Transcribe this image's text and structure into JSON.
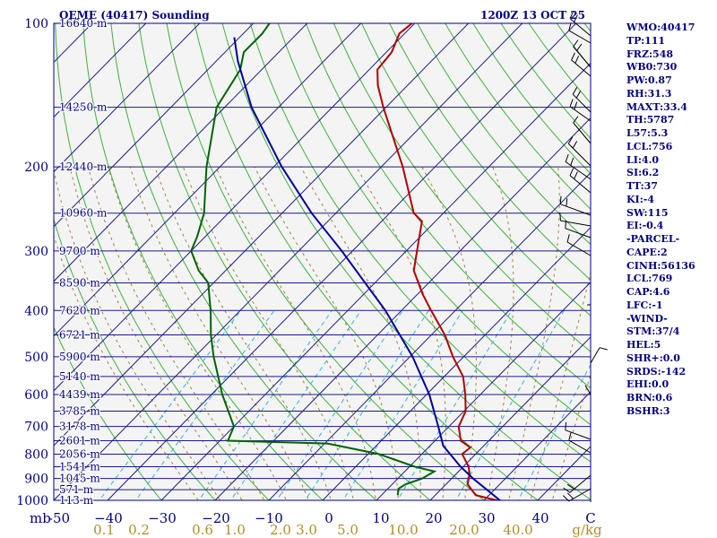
{
  "header": {
    "title": "OEME (40417) Sounding",
    "time": "1200Z 13 OCT 25"
  },
  "units": {
    "pressure": "mb",
    "mixing_ratio": "g/kg"
  },
  "panel": [
    "WMO:40417",
    "TP:111",
    "FRZ:548",
    "WB0:730",
    "PW:0.87",
    "RH:31.3",
    "MAXT:33.4",
    "TH:5787",
    "L57:5.3",
    "LCL:756",
    "LI:4.0",
    "SI:6.2",
    "TT:37",
    "KI:-4",
    "SW:115",
    "EI:-0.4",
    "-PARCEL-",
    "CAPE:2",
    "CINH:56136",
    "LCL:769",
    "CAP:4.6",
    "LFC:-1",
    "-WIND-",
    "STM:37/4",
    "HEL:5",
    "SHR+:0.0",
    "SRDS:-142",
    "EHI:0.0",
    "BRN:0.6",
    "BSHR:3"
  ],
  "chart_data": {
    "type": "line",
    "title": "OEME (40417) Sounding",
    "subtitle": "1200Z 13 OCT 25",
    "xlabel": "",
    "ylabel": "mb",
    "log_y": true,
    "ylim": [
      1000,
      100
    ],
    "xlim": [
      -50,
      50
    ],
    "skew": true,
    "grid": true,
    "pressure_ticks": [
      100,
      200,
      300,
      400,
      500,
      600,
      700,
      800,
      900,
      1000
    ],
    "temperature_ticks": [
      "-50",
      "−40",
      "−30",
      "−20",
      "−10",
      "0",
      "10",
      "20",
      "30",
      "40",
      "C"
    ],
    "mixing_ratio_ticks": [
      "0.1",
      "0.2",
      "0.6",
      "1.0",
      "2.0",
      "3.0",
      "5.0",
      "10.0",
      "20.0",
      "40.0",
      "g/kg"
    ],
    "height_labels": [
      {
        "p": 100,
        "label": "16640 m"
      },
      {
        "p": 150,
        "label": "14250 m"
      },
      {
        "p": 200,
        "label": "12440 m"
      },
      {
        "p": 250,
        "label": "10960 m"
      },
      {
        "p": 300,
        "label": "9700 m"
      },
      {
        "p": 350,
        "label": "8590 m"
      },
      {
        "p": 400,
        "label": "7620 m"
      },
      {
        "p": 450,
        "label": "6721 m"
      },
      {
        "p": 500,
        "label": "5900 m"
      },
      {
        "p": 550,
        "label": "5140 m"
      },
      {
        "p": 600,
        "label": "4439 m"
      },
      {
        "p": 650,
        "label": "3785 m"
      },
      {
        "p": 700,
        "label": "3178 m"
      },
      {
        "p": 750,
        "label": "2601 m"
      },
      {
        "p": 800,
        "label": "2056 m"
      },
      {
        "p": 850,
        "label": "1541 m"
      },
      {
        "p": 900,
        "label": "1045 m"
      },
      {
        "p": 950,
        "label": "571 m"
      },
      {
        "p": 1000,
        "label": "113 m"
      }
    ],
    "series": [
      {
        "color": "#b30000",
        "points": [
          {
            "p": 1005,
            "t": 33.4
          },
          {
            "p": 975,
            "t": 27.5
          },
          {
            "p": 925,
            "t": 24.0
          },
          {
            "p": 880,
            "t": 22.5
          },
          {
            "p": 850,
            "t": 21.0
          },
          {
            "p": 800,
            "t": 17.5
          },
          {
            "p": 775,
            "t": 17.8
          },
          {
            "p": 750,
            "t": 14.8
          },
          {
            "p": 700,
            "t": 11.8
          },
          {
            "p": 650,
            "t": 10.3
          },
          {
            "p": 600,
            "t": 7.2
          },
          {
            "p": 550,
            "t": 3.5
          },
          {
            "p": 500,
            "t": -2.0
          },
          {
            "p": 450,
            "t": -7.5
          },
          {
            "p": 400,
            "t": -14.5
          },
          {
            "p": 370,
            "t": -19.0
          },
          {
            "p": 330,
            "t": -25.0
          },
          {
            "p": 300,
            "t": -28.0
          },
          {
            "p": 260,
            "t": -32.5
          },
          {
            "p": 250,
            "t": -35.5
          },
          {
            "p": 200,
            "t": -46.0
          },
          {
            "p": 150,
            "t": -60.5
          },
          {
            "p": 135,
            "t": -65.5
          },
          {
            "p": 125,
            "t": -68.5
          },
          {
            "p": 115,
            "t": -69.0
          },
          {
            "p": 105,
            "t": -71.0
          },
          {
            "p": 100,
            "t": -70.5
          }
        ]
      },
      {
        "color": "#006400",
        "points": [
          {
            "p": 975,
            "t": 13.0
          },
          {
            "p": 945,
            "t": 12.0
          },
          {
            "p": 925,
            "t": 12.5
          },
          {
            "p": 900,
            "t": 14.5
          },
          {
            "p": 870,
            "t": 15.5
          },
          {
            "p": 850,
            "t": 11.0
          },
          {
            "p": 800,
            "t": 2.0
          },
          {
            "p": 760,
            "t": -9.5
          },
          {
            "p": 750,
            "t": -28.5
          },
          {
            "p": 700,
            "t": -30.0
          },
          {
            "p": 600,
            "t": -38.0
          },
          {
            "p": 500,
            "t": -46.5
          },
          {
            "p": 450,
            "t": -51.0
          },
          {
            "p": 400,
            "t": -55.5
          },
          {
            "p": 350,
            "t": -61.0
          },
          {
            "p": 330,
            "t": -65.0
          },
          {
            "p": 300,
            "t": -70.0
          },
          {
            "p": 280,
            "t": -71.5
          },
          {
            "p": 250,
            "t": -74.5
          },
          {
            "p": 200,
            "t": -82.5
          },
          {
            "p": 150,
            "t": -91.5
          },
          {
            "p": 125,
            "t": -94.0
          },
          {
            "p": 115,
            "t": -96.5
          },
          {
            "p": 105,
            "t": -96.5
          },
          {
            "p": 100,
            "t": -97.0
          }
        ]
      },
      {
        "color": "#0000a0",
        "points": [
          {
            "p": 1005,
            "t": 33.4
          },
          {
            "p": 950,
            "t": 28.6
          },
          {
            "p": 900,
            "t": 24.0
          },
          {
            "p": 850,
            "t": 19.5
          },
          {
            "p": 769,
            "t": 12.5
          },
          {
            "p": 700,
            "t": 8.0
          },
          {
            "p": 600,
            "t": 0.5
          },
          {
            "p": 500,
            "t": -9.5
          },
          {
            "p": 400,
            "t": -23.0
          },
          {
            "p": 300,
            "t": -42.0
          },
          {
            "p": 250,
            "t": -54.5
          },
          {
            "p": 200,
            "t": -68.5
          },
          {
            "p": 150,
            "t": -85.0
          },
          {
            "p": 120,
            "t": -96.0
          },
          {
            "p": 107,
            "t": -101.0
          }
        ]
      }
    ],
    "wind_barbs_present": true
  }
}
